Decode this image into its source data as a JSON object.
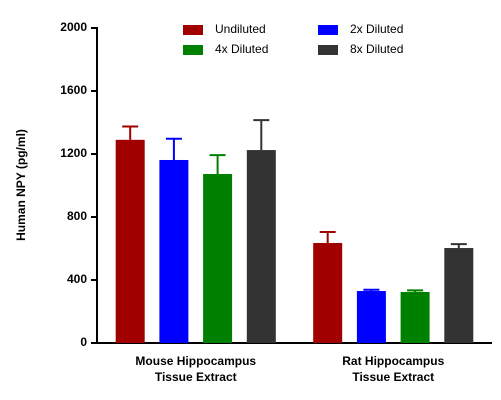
{
  "chart_data": {
    "type": "bar",
    "y_label": "Human NPY (pg/ml)",
    "categories": [
      [
        "Mouse Hippocampus",
        "Tissue Extract"
      ],
      [
        "Rat Hippocampus",
        "Tissue Extract"
      ]
    ],
    "series": [
      {
        "name": "Undiluted",
        "color": "#a00000",
        "values": [
          1290,
          635
        ],
        "errors": [
          85,
          70
        ]
      },
      {
        "name": "2x Diluted",
        "color": "#0000ff",
        "values": [
          1162,
          330
        ],
        "errors": [
          135,
          8
        ]
      },
      {
        "name": "4x Diluted",
        "color": "#008000",
        "values": [
          1073,
          324
        ],
        "errors": [
          120,
          10
        ]
      },
      {
        "name": "8x Diluted",
        "color": "#333333",
        "values": [
          1225,
          603
        ],
        "errors": [
          190,
          25
        ]
      }
    ],
    "ylim": [
      0,
      2000
    ],
    "yticks": [
      0,
      400,
      800,
      1200,
      1600,
      2000
    ]
  }
}
